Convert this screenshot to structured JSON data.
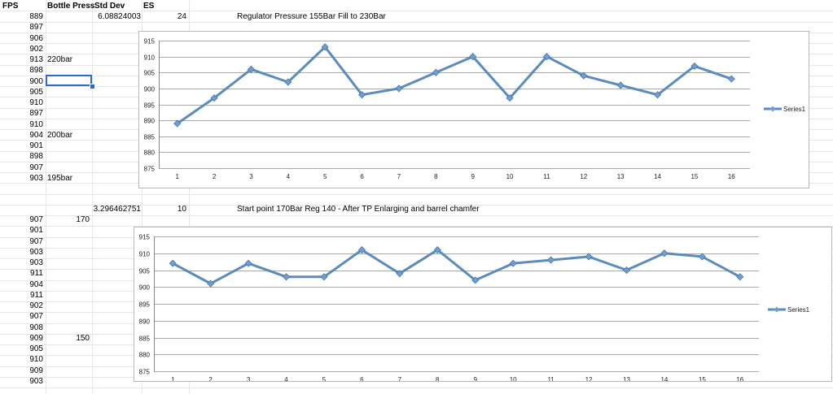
{
  "headers": [
    "FPS",
    "Bottle Press",
    "Std Dev",
    "ES"
  ],
  "block1": {
    "std_dev": "6.08824003",
    "es": "24",
    "note": "Regulator Pressure 155Bar Fill to 230Bar",
    "fps": [
      "889",
      "897",
      "906",
      "902",
      "913",
      "898",
      "900",
      "905",
      "910",
      "897",
      "910",
      "904",
      "901",
      "898",
      "907",
      "903"
    ],
    "bottle_press": [
      {
        "row": 4,
        "text": "220bar"
      },
      {
        "row": 11,
        "text": "200bar"
      },
      {
        "row": 15,
        "text": "195bar"
      }
    ]
  },
  "block2": {
    "std_dev": "3.296462751",
    "es": "10",
    "note": "Start point 170Bar Reg 140 - After TP Enlarging and barrel chamfer",
    "fps": [
      "907",
      "901",
      "907",
      "903",
      "903",
      "911",
      "904",
      "911",
      "902",
      "907",
      "908",
      "909",
      "905",
      "910",
      "909",
      "903"
    ],
    "bottle_press": [
      {
        "row": 0,
        "text": "170"
      },
      {
        "row": 11,
        "text": "150"
      }
    ]
  },
  "colors": {
    "series": "#5b8cc0",
    "marker": "#6f9fd2",
    "gridline": "#a8a8a8",
    "selection": "#2a6bd1"
  },
  "chart_data": [
    {
      "type": "line",
      "title": "",
      "xlabel": "",
      "ylabel": "",
      "categories": [
        "1",
        "2",
        "3",
        "4",
        "5",
        "6",
        "7",
        "8",
        "9",
        "10",
        "11",
        "12",
        "13",
        "14",
        "15",
        "16"
      ],
      "series": [
        {
          "name": "Series1",
          "values": [
            889,
            897,
            906,
            902,
            913,
            898,
            900,
            905,
            910,
            897,
            910,
            904,
            901,
            898,
            907,
            903
          ]
        }
      ],
      "ylim": [
        875,
        915
      ],
      "yticks": [
        "875",
        "880",
        "885",
        "890",
        "895",
        "900",
        "905",
        "910",
        "915"
      ],
      "grid": true,
      "legend": "right"
    },
    {
      "type": "line",
      "title": "",
      "xlabel": "",
      "ylabel": "",
      "categories": [
        "1",
        "2",
        "3",
        "4",
        "5",
        "6",
        "7",
        "8",
        "9",
        "10",
        "11",
        "12",
        "13",
        "14",
        "15",
        "16"
      ],
      "series": [
        {
          "name": "Series1",
          "values": [
            907,
            901,
            907,
            903,
            903,
            911,
            904,
            911,
            902,
            907,
            908,
            909,
            905,
            910,
            909,
            903
          ]
        }
      ],
      "ylim": [
        875,
        915
      ],
      "yticks": [
        "875",
        "880",
        "885",
        "890",
        "895",
        "900",
        "905",
        "910",
        "915"
      ],
      "grid": true,
      "legend": "right"
    }
  ]
}
